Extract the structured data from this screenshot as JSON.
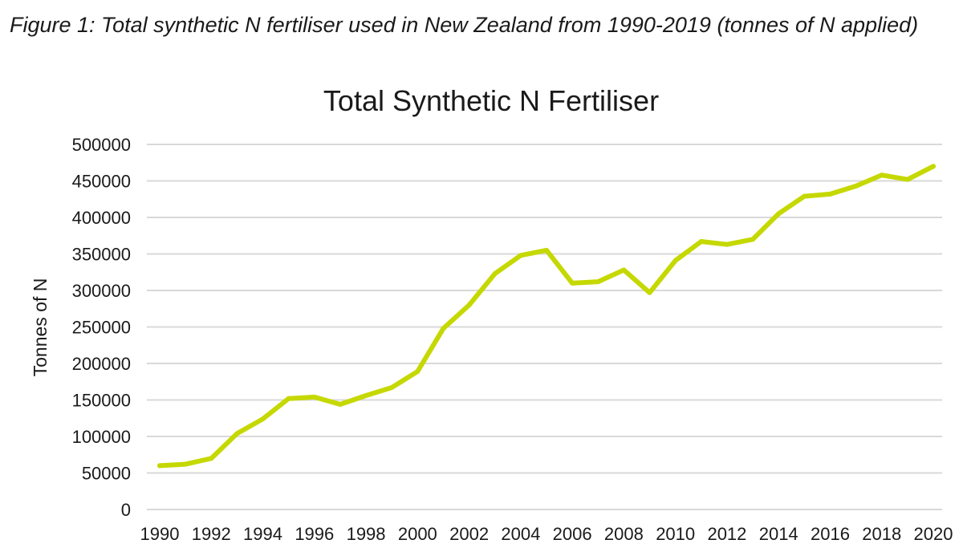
{
  "figure_caption": "Figure 1: Total synthetic N fertiliser used in New Zealand from 1990-2019 (tonnes of N applied)",
  "colors": {
    "line": "#c5d800",
    "grid": "#d9d9d9",
    "text": "#1a1a1a"
  },
  "chart_data": {
    "type": "line",
    "title": "Total Synthetic N Fertiliser",
    "xlabel": "",
    "ylabel": "Tonnes of N",
    "grid": "horizontal",
    "legend": "none",
    "xlim": [
      1990,
      2020
    ],
    "ylim": [
      0,
      500000
    ],
    "y_ticks": [
      "0",
      "50000",
      "100000",
      "150000",
      "200000",
      "250000",
      "300000",
      "350000",
      "400000",
      "450000",
      "500000"
    ],
    "x_ticks": [
      "1990",
      "1992",
      "1994",
      "1996",
      "1998",
      "2000",
      "2002",
      "2004",
      "2006",
      "2008",
      "2010",
      "2012",
      "2014",
      "2016",
      "2018",
      "2020"
    ],
    "series": [
      {
        "x": [
          1990,
          1991,
          1992,
          1993,
          1994,
          1995,
          1996,
          1997,
          1998,
          1999,
          2000,
          2001,
          2002,
          2003,
          2004,
          2005,
          2006,
          2007,
          2008,
          2009,
          2010,
          2011,
          2012,
          2013,
          2014,
          2015,
          2016,
          2017,
          2018,
          2019,
          2020
        ],
        "values": [
          60000,
          62000,
          70000,
          104000,
          124000,
          152000,
          154000,
          144000,
          156000,
          167000,
          189000,
          248000,
          280000,
          323000,
          348000,
          355000,
          310000,
          312000,
          328000,
          297000,
          341000,
          367000,
          363000,
          370000,
          405000,
          429000,
          432000,
          443000,
          458000,
          452000,
          470000
        ]
      }
    ]
  }
}
